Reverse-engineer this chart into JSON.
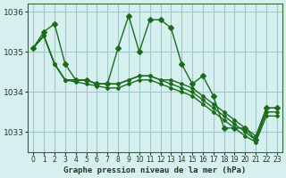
{
  "title": "Graphe pression niveau de la mer (hPa)",
  "background_color": "#d6f0f0",
  "grid_color": "#a0c8c8",
  "line_color": "#1a6b1a",
  "x_ticks": [
    0,
    1,
    2,
    3,
    4,
    5,
    6,
    7,
    8,
    9,
    10,
    11,
    12,
    13,
    14,
    15,
    16,
    17,
    18,
    19,
    20,
    21,
    22,
    23
  ],
  "ylim": [
    1032.5,
    1036.2
  ],
  "yticks": [
    1033,
    1034,
    1035,
    1036
  ],
  "series": [
    [
      1035.1,
      1035.5,
      1035.7,
      1034.7,
      1034.3,
      1034.3,
      1034.2,
      1034.2,
      1035.1,
      1035.9,
      1035.0,
      1035.8,
      1035.8,
      1035.6,
      1034.7,
      1034.2,
      1034.4,
      1033.9,
      1033.1,
      1033.1,
      1033.1,
      1032.8,
      1033.6,
      1033.6
    ],
    [
      1035.1,
      1035.4,
      1034.7,
      1034.3,
      1034.3,
      1034.3,
      1034.2,
      1034.2,
      1034.2,
      1034.3,
      1034.4,
      1034.4,
      1034.3,
      1034.3,
      1034.2,
      1034.1,
      1033.9,
      1033.7,
      1033.5,
      1033.3,
      1033.1,
      1032.9,
      1033.6,
      1033.6
    ],
    [
      1035.1,
      1035.4,
      1034.7,
      1034.3,
      1034.3,
      1034.3,
      1034.2,
      1034.2,
      1034.2,
      1034.3,
      1034.4,
      1034.4,
      1034.3,
      1034.2,
      1034.1,
      1034.0,
      1033.8,
      1033.6,
      1033.4,
      1033.2,
      1033.0,
      1032.8,
      1033.5,
      1033.5
    ],
    [
      1035.1,
      1035.4,
      1034.7,
      1034.3,
      1034.25,
      1034.2,
      1034.15,
      1034.1,
      1034.1,
      1034.2,
      1034.3,
      1034.3,
      1034.2,
      1034.1,
      1034.0,
      1033.9,
      1033.7,
      1033.5,
      1033.3,
      1033.1,
      1032.9,
      1032.75,
      1033.4,
      1033.4
    ]
  ],
  "marker_series": [
    [
      1035.1,
      1035.5,
      1035.7,
      1034.7,
      1034.3,
      1034.3,
      1034.2,
      1034.2,
      1035.1,
      1035.9,
      1035.0,
      1035.8,
      1035.8,
      1035.6,
      1034.7,
      1034.2,
      1034.4,
      1033.9,
      1033.1,
      1033.1,
      1033.1,
      1032.8,
      1033.6,
      1033.6
    ]
  ]
}
